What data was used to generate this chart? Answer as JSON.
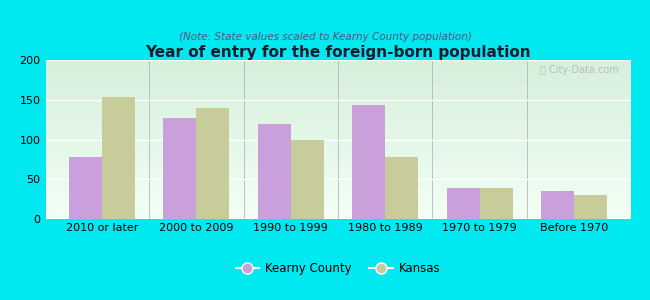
{
  "title": "Year of entry for the foreign-born population",
  "subtitle": "(Note: State values scaled to Kearny County population)",
  "categories": [
    "2010 or later",
    "2000 to 2009",
    "1990 to 1999",
    "1980 to 1989",
    "1970 to 1979",
    "Before 1970"
  ],
  "kearny_values": [
    78,
    127,
    119,
    144,
    39,
    35
  ],
  "kansas_values": [
    153,
    140,
    100,
    78,
    39,
    30
  ],
  "kearny_color": "#c9a0dc",
  "kansas_color": "#c8cc9a",
  "background_outer": "#00e8f0",
  "background_inner_tl": "#d8eedc",
  "background_inner_tr": "#e8f5ee",
  "background_inner_bl": "#eef8ee",
  "background_inner_br": "#f8fff8",
  "ylim": [
    0,
    200
  ],
  "yticks": [
    0,
    50,
    100,
    150,
    200
  ],
  "bar_width": 0.35,
  "legend_kearny": "Kearny County",
  "legend_kansas": "Kansas",
  "title_fontsize": 11,
  "subtitle_fontsize": 7.5,
  "tick_fontsize": 8,
  "watermark_text": "Ⓜ City-Data.com"
}
